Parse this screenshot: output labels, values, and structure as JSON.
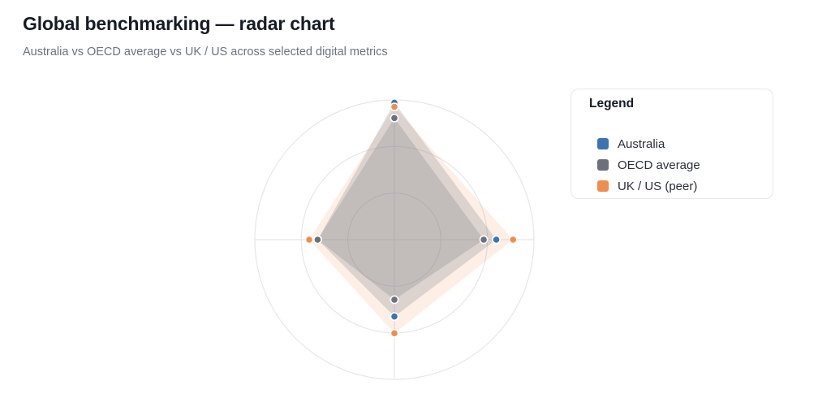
{
  "header": {
    "title": "Global benchmarking — radar chart",
    "subtitle": "Australia vs OECD average vs UK / US across selected digital metrics"
  },
  "legend": {
    "title": "Legend",
    "items": [
      {
        "label": "Australia",
        "color": "#3b74b3"
      },
      {
        "label": "OECD average",
        "color": "#6b707c"
      },
      {
        "label": "UK / US (peer)",
        "color": "#ef8d4f"
      }
    ]
  },
  "chart_data": {
    "type": "radar",
    "axes": [
      "",
      "",
      "",
      ""
    ],
    "range": [
      0,
      100
    ],
    "rings": 3,
    "grid": true,
    "legend_position": "right",
    "series": [
      {
        "name": "Australia",
        "color": "#3b74b3",
        "values": [
          98,
          73,
          55,
          55
        ]
      },
      {
        "name": "OECD average",
        "color": "#6b707c",
        "values": [
          87,
          64,
          43,
          55
        ]
      },
      {
        "name": "UK / US (peer)",
        "color": "#ef8d4f",
        "values": [
          95,
          85,
          67,
          61
        ]
      }
    ]
  }
}
